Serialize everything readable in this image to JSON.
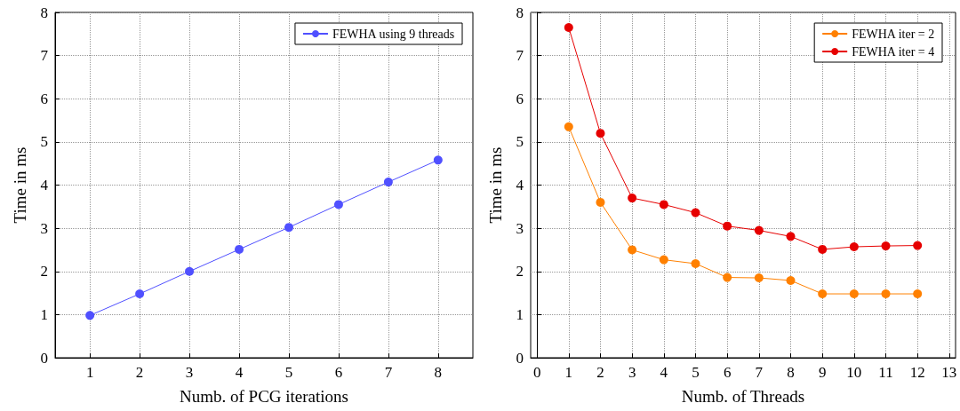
{
  "chart_data": [
    {
      "type": "line",
      "xlabel": "Numb. of PCG iterations",
      "ylabel": "Time in ms",
      "x": [
        1,
        2,
        3,
        4,
        5,
        6,
        7,
        8
      ],
      "series": [
        {
          "name": "FEWHA using 9 threads",
          "color": "#5050ff",
          "values": [
            0.98,
            1.48,
            2.0,
            2.51,
            3.02,
            3.55,
            4.07,
            4.58
          ]
        }
      ],
      "xlim": [
        0.3,
        8.7
      ],
      "xticks": [
        1,
        2,
        3,
        4,
        5,
        6,
        7,
        8
      ],
      "ylim": [
        0,
        8
      ],
      "yticks": [
        0,
        1,
        2,
        3,
        4,
        5,
        6,
        7,
        8
      ],
      "grid": true,
      "legend": "top right",
      "marker": "circle",
      "line_style": "solid"
    },
    {
      "type": "line",
      "xlabel": "Numb. of Threads",
      "ylabel": "Time in ms",
      "x": [
        1,
        2,
        3,
        4,
        5,
        6,
        7,
        8,
        9,
        10,
        11,
        12
      ],
      "series": [
        {
          "name": "FEWHA iter = 2",
          "color": "#ff8000",
          "values": [
            5.35,
            3.6,
            2.5,
            2.27,
            2.18,
            1.86,
            1.85,
            1.79,
            1.48,
            1.48,
            1.48,
            1.48
          ]
        },
        {
          "name": "FEWHA iter = 4",
          "color": "#e60000",
          "values": [
            7.65,
            5.2,
            3.7,
            3.55,
            3.36,
            3.05,
            2.95,
            2.81,
            2.51,
            2.57,
            2.59,
            2.6
          ]
        }
      ],
      "xlim": [
        -0.2,
        13.2
      ],
      "xticks": [
        0,
        1,
        2,
        3,
        4,
        5,
        6,
        7,
        8,
        9,
        10,
        11,
        12,
        13
      ],
      "ylim": [
        0,
        8
      ],
      "yticks": [
        0,
        1,
        2,
        3,
        4,
        5,
        6,
        7,
        8
      ],
      "grid": true,
      "legend": "top right",
      "marker": "circle",
      "line_style": "solid"
    }
  ]
}
